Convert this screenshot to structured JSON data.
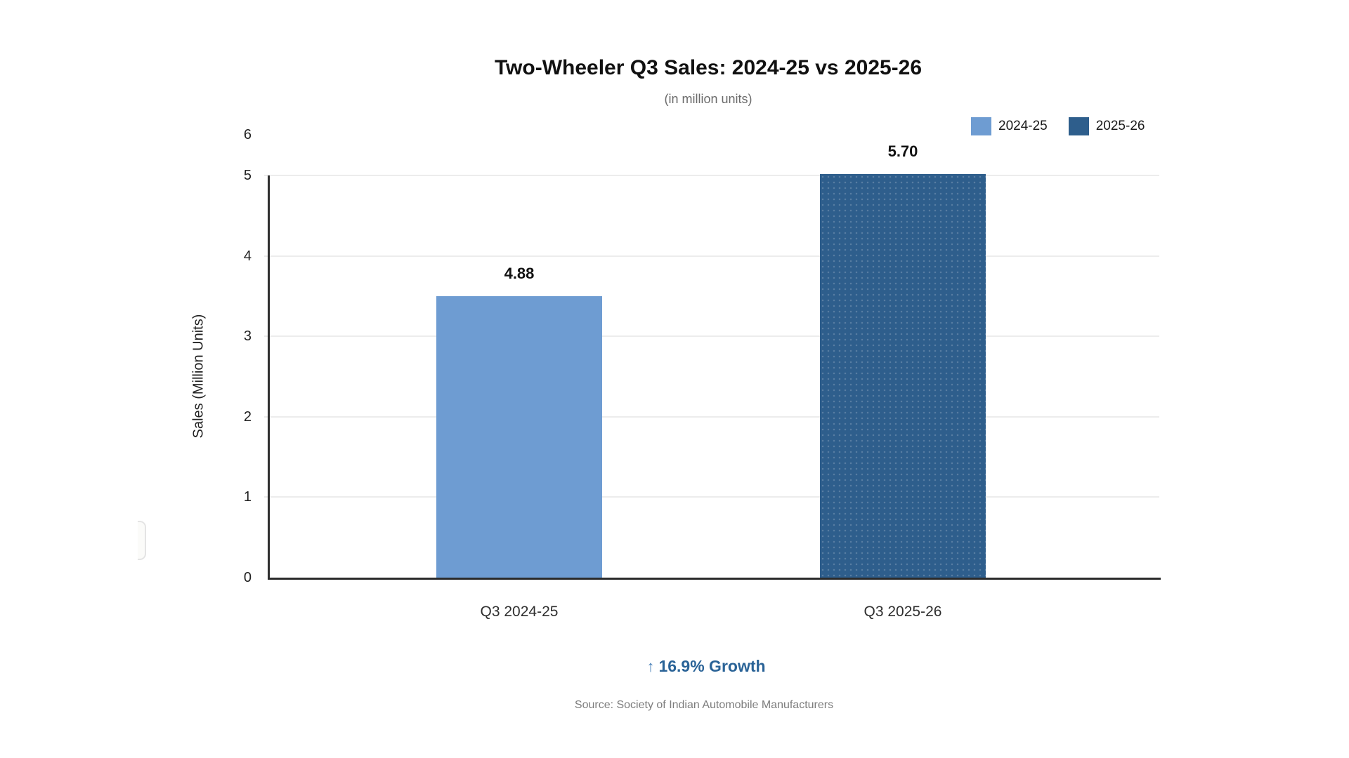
{
  "chart_data": {
    "type": "bar",
    "title": "Two-Wheeler Q3 Sales: 2024-25 vs 2025-26",
    "subtitle": "(in million units)",
    "ylabel": "Sales (Million Units)",
    "categories": [
      "Q3 2024-25",
      "Q3 2025-26"
    ],
    "values": [
      4.88,
      5.7
    ],
    "value_labels": [
      "4.88",
      "5.70"
    ],
    "bar_colors": [
      "#6E9CD2",
      "#2E5E8C"
    ],
    "bar_textured": [
      false,
      true
    ],
    "bar_drawn_heights_units": [
      3.5,
      5.02
    ],
    "ylim": [
      0,
      6
    ],
    "yticks": [
      0,
      1,
      2,
      3,
      4,
      5,
      6
    ],
    "grid": "horizontal",
    "legend": {
      "position": "top-right",
      "entries": [
        {
          "label": "2024-25",
          "color": "#6E9CD2"
        },
        {
          "label": "2025-26",
          "color": "#2E5E8C"
        }
      ]
    },
    "annotation": {
      "arrow": "↑",
      "text": "16.9% Growth"
    },
    "source": "Source: Society of Indian Automobile Manufacturers"
  }
}
